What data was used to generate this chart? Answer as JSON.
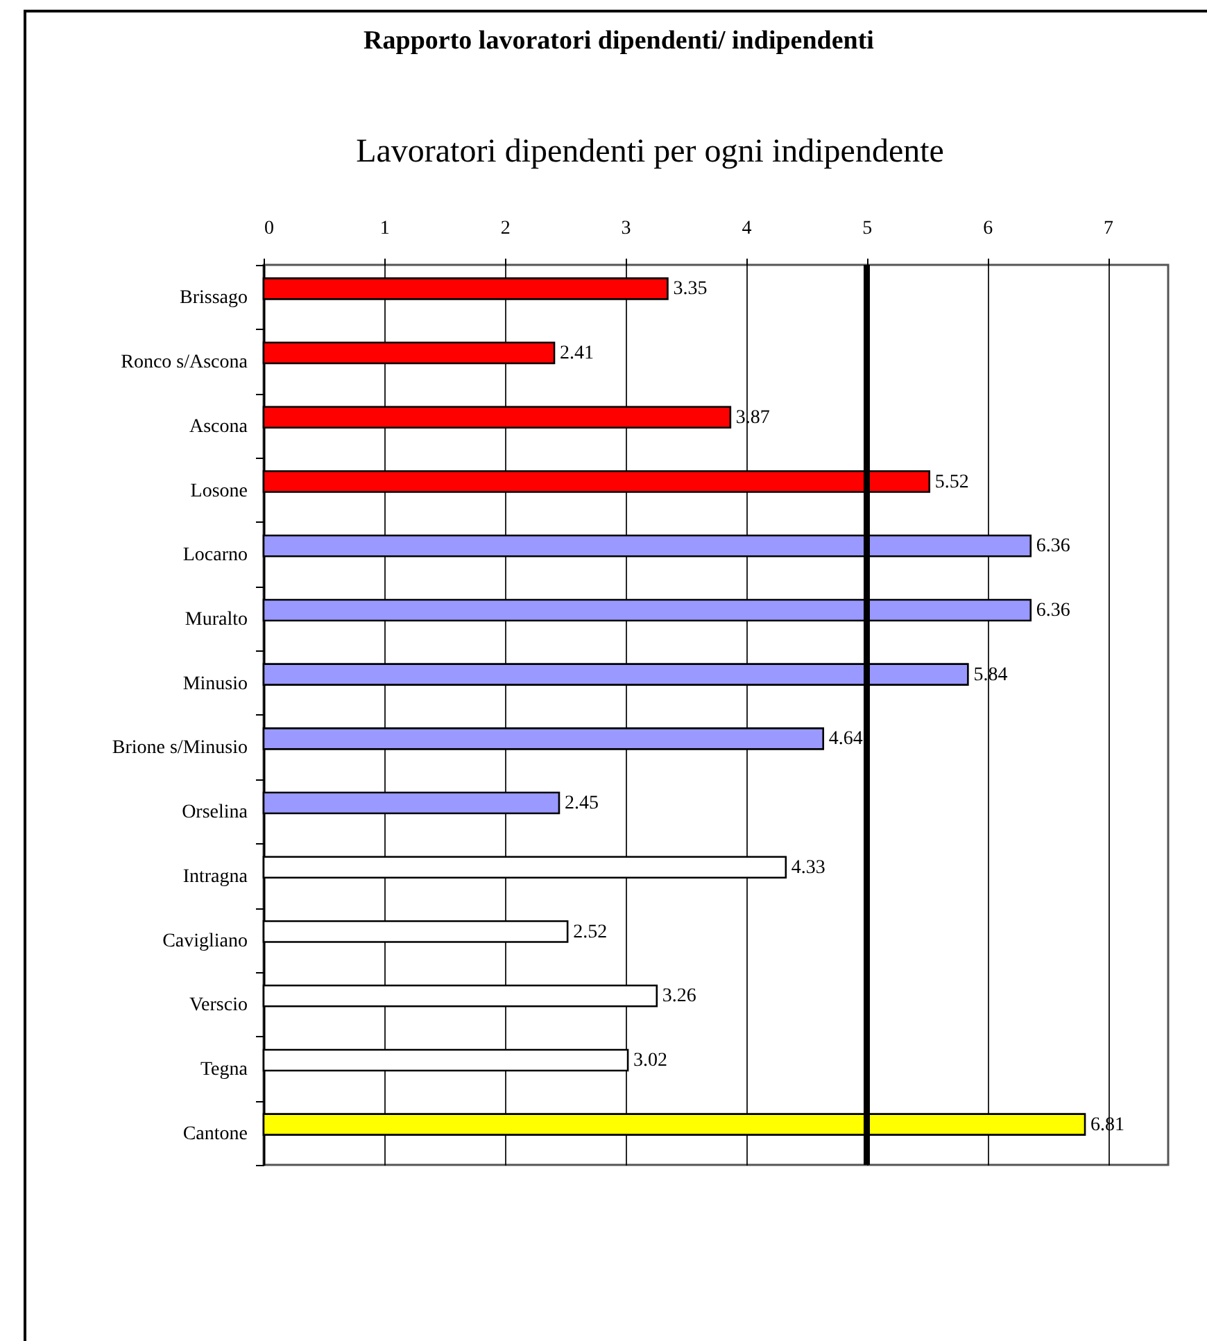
{
  "chart_data": {
    "type": "bar",
    "orientation": "horizontal",
    "title": "Rapporto lavoratori dipendenti/ indipendenti",
    "xlabel": "Lavoratori dipendenti per ogni indipendente",
    "categories": [
      "Brissago",
      "Ronco s/Ascona",
      "Ascona",
      "Losone",
      "Locarno",
      "Muralto",
      "Minusio",
      "Brione s/Minusio",
      "Orselina",
      "Intragna",
      "Cavigliano",
      "Verscio",
      "Tegna",
      "Cantone"
    ],
    "values": [
      3.35,
      2.41,
      3.87,
      5.52,
      6.36,
      6.36,
      5.84,
      4.64,
      2.45,
      4.33,
      2.52,
      3.26,
      3.02,
      6.81
    ],
    "colors": [
      "#ff0000",
      "#ff0000",
      "#ff0000",
      "#ff0000",
      "#9999ff",
      "#9999ff",
      "#9999ff",
      "#9999ff",
      "#9999ff",
      "#ffffff",
      "#ffffff",
      "#ffffff",
      "#ffffff",
      "#ffff00"
    ],
    "xlim": [
      0,
      7.5
    ],
    "xticks": [
      0,
      1,
      2,
      3,
      4,
      5,
      6,
      7
    ],
    "grid": "x",
    "data_labels": true,
    "ref_lines": [
      {
        "axis": "x",
        "value": 5,
        "color": "#000000"
      }
    ]
  }
}
